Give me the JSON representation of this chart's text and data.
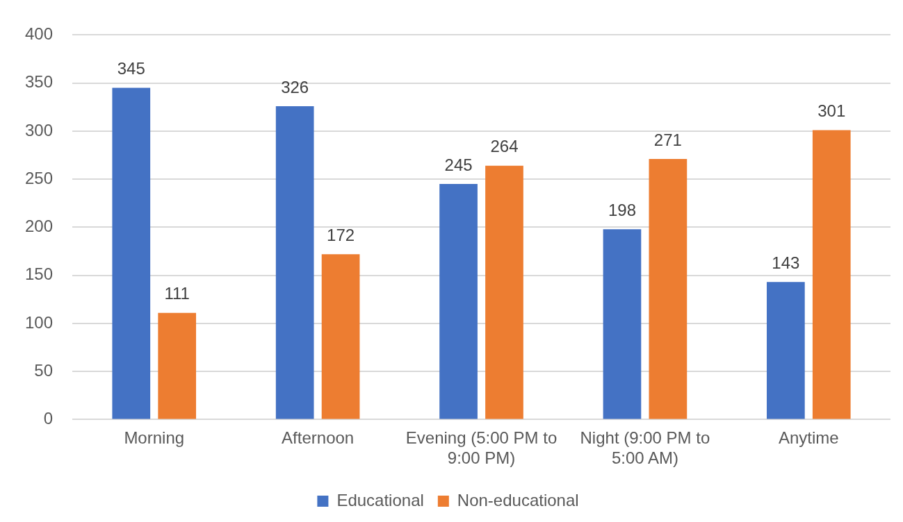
{
  "chart_data": {
    "type": "bar",
    "categories": [
      "Morning",
      "Afternoon",
      "Evening (5:00 PM to 9:00 PM)",
      "Night (9:00 PM to 5:00 AM)",
      "Anytime"
    ],
    "series": [
      {
        "name": "Educational",
        "color": "#4472c4",
        "values": [
          345,
          326,
          245,
          198,
          143
        ]
      },
      {
        "name": "Non-educational",
        "color": "#ed7d31",
        "values": [
          111,
          172,
          264,
          271,
          301
        ]
      }
    ],
    "ylim": [
      0,
      400
    ],
    "yticks": [
      0,
      50,
      100,
      150,
      200,
      250,
      300,
      350,
      400
    ],
    "grid": "y",
    "legend": "bottom",
    "data_labels": true
  }
}
